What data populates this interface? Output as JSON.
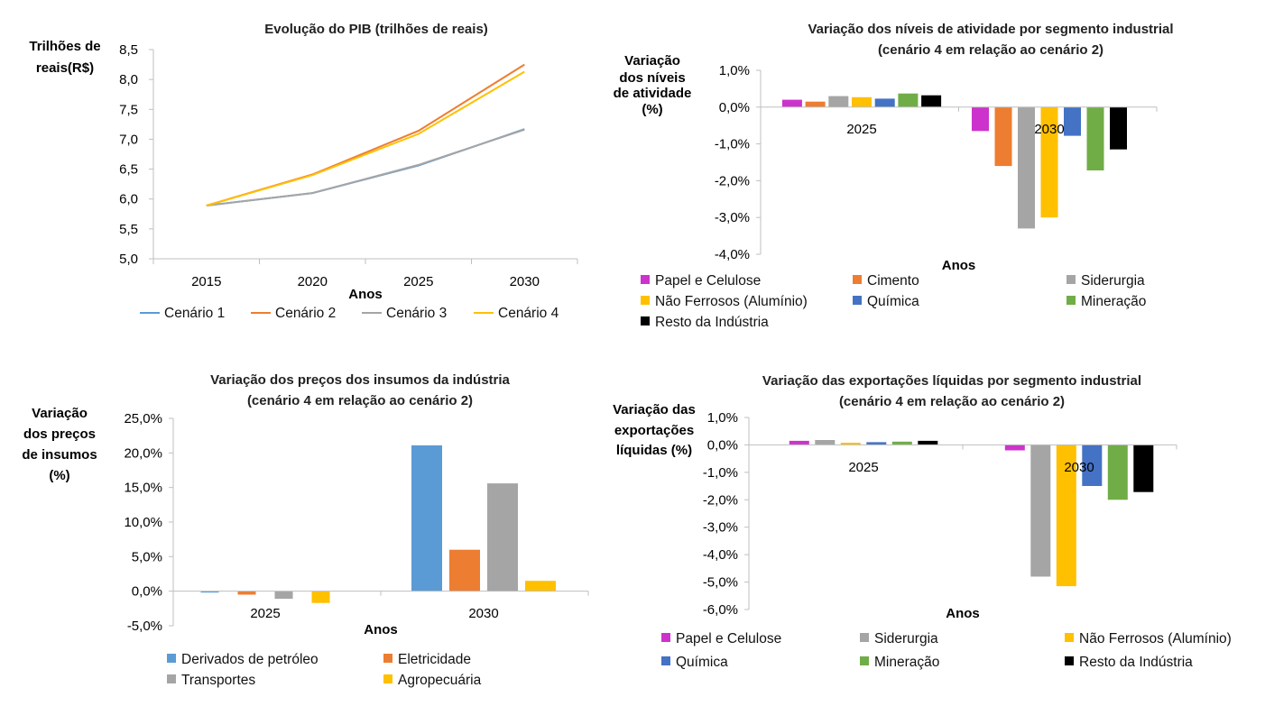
{
  "chart_data": [
    {
      "id": "pib",
      "type": "line",
      "title": "Evolução do PIB (trilhões de reais)",
      "ylabel": [
        "Trilhões de",
        "reais(R$)"
      ],
      "xlabel": "Anos",
      "categories": [
        "2015",
        "2020",
        "2025",
        "2030"
      ],
      "ylim": [
        5.0,
        8.5
      ],
      "yticks": [
        "5,0",
        "5,5",
        "6,0",
        "6,5",
        "7,0",
        "7,5",
        "8,0",
        "8,5"
      ],
      "series": [
        {
          "name": "Cenário 1",
          "color": "#5b9bd5",
          "values": [
            5.89,
            6.1,
            6.56,
            7.17
          ]
        },
        {
          "name": "Cenário 2",
          "color": "#ed7d31",
          "values": [
            5.89,
            6.41,
            7.14,
            8.25
          ]
        },
        {
          "name": "Cenário 3",
          "color": "#a5a5a5",
          "values": [
            5.89,
            6.1,
            6.57,
            7.16
          ]
        },
        {
          "name": "Cenário 4",
          "color": "#ffc000",
          "values": [
            5.89,
            6.4,
            7.09,
            8.13
          ]
        }
      ],
      "legend": "bottom",
      "grid": false
    },
    {
      "id": "atividade",
      "type": "bar",
      "title": [
        "Variação dos níveis de atividade por segmento industrial",
        "(cenário 4 em relação ao cenário 2)"
      ],
      "ylabel": [
        "Variação",
        "dos níveis",
        "de atividade",
        "(%)"
      ],
      "xlabel": "Anos",
      "categories": [
        "2025",
        "2030"
      ],
      "ylim": [
        -4.0,
        1.0
      ],
      "yticks": [
        "1,0%",
        "0,0%",
        "-1,0%",
        "-2,0%",
        "-3,0%",
        "-4,0%"
      ],
      "series": [
        {
          "name": "Papel e Celulose",
          "color": "#cc33cc",
          "values": [
            0.2,
            -0.65
          ]
        },
        {
          "name": "Cimento",
          "color": "#ed7d31",
          "values": [
            0.15,
            -1.6
          ]
        },
        {
          "name": "Siderurgia",
          "color": "#a5a5a5",
          "values": [
            0.3,
            -3.3
          ]
        },
        {
          "name": "Não Ferrosos (Alumínio)",
          "color": "#ffc000",
          "values": [
            0.27,
            -3.0
          ]
        },
        {
          "name": "Química",
          "color": "#4472c4",
          "values": [
            0.23,
            -0.78
          ]
        },
        {
          "name": "Mineração",
          "color": "#70ad47",
          "values": [
            0.37,
            -1.72
          ]
        },
        {
          "name": "Resto da Indústria",
          "color": "#000000",
          "values": [
            0.32,
            -1.15
          ]
        }
      ],
      "legend": "bottom",
      "grid": false
    },
    {
      "id": "precos",
      "type": "bar",
      "title": [
        "Variação dos preços dos insumos da indústria",
        "(cenário 4 em relação ao cenário 2)"
      ],
      "ylabel": [
        "Variação",
        "dos preços",
        "de insumos",
        "(%)"
      ],
      "xlabel": "Anos",
      "categories": [
        "2025",
        "2030"
      ],
      "ylim": [
        -5.0,
        25.0
      ],
      "yticks": [
        "25,0%",
        "20,0%",
        "15,0%",
        "10,0%",
        "5,0%",
        "0,0%",
        "-5,0%"
      ],
      "series": [
        {
          "name": "Derivados de petróleo",
          "color": "#5b9bd5",
          "values": [
            -0.2,
            21.1
          ]
        },
        {
          "name": "Eletricidade",
          "color": "#ed7d31",
          "values": [
            -0.5,
            6.0
          ]
        },
        {
          "name": "Transportes",
          "color": "#a5a5a5",
          "values": [
            -1.1,
            15.6
          ]
        },
        {
          "name": "Agropecuária",
          "color": "#ffc000",
          "values": [
            -1.7,
            1.5
          ]
        }
      ],
      "legend": "bottom",
      "grid": false
    },
    {
      "id": "exportacoes",
      "type": "bar",
      "title": [
        "Variação das exportações líquidas por segmento industrial",
        "(cenário 4 em relação ao cenário 2)"
      ],
      "ylabel": [
        "Variação das",
        "exportações",
        "líquidas (%)"
      ],
      "xlabel": "Anos",
      "categories": [
        "2025",
        "2030"
      ],
      "ylim": [
        -6.0,
        1.0
      ],
      "yticks": [
        "1,0%",
        "0,0%",
        "-1,0%",
        "-2,0%",
        "-3,0%",
        "-4,0%",
        "-5,0%",
        "-6,0%"
      ],
      "series": [
        {
          "name": "Papel e Celulose",
          "color": "#cc33cc",
          "values": [
            0.15,
            -0.2
          ]
        },
        {
          "name": "Siderurgia",
          "color": "#a5a5a5",
          "values": [
            0.18,
            -4.8
          ]
        },
        {
          "name": "Não Ferrosos (Alumínio)",
          "color": "#ffc000",
          "values": [
            0.08,
            -5.15
          ]
        },
        {
          "name": "Química",
          "color": "#4472c4",
          "values": [
            0.1,
            -1.5
          ]
        },
        {
          "name": "Mineração",
          "color": "#70ad47",
          "values": [
            0.12,
            -2.0
          ]
        },
        {
          "name": "Resto da Indústria",
          "color": "#000000",
          "values": [
            0.15,
            -1.72
          ]
        }
      ],
      "legend": "bottom",
      "grid": false
    }
  ]
}
